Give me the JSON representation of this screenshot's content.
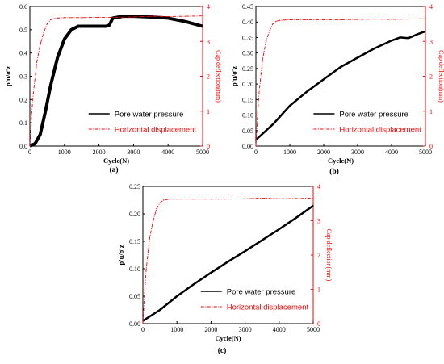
{
  "chart_data": [
    {
      "type": "line",
      "panel_label": "(a)",
      "xlabel": "Cycle(N)",
      "ylabel": "p'u/σ'z",
      "y2label": "Cap deflection(mm)",
      "xlim": [
        0,
        5000
      ],
      "ylim": [
        0,
        0.6
      ],
      "y2lim": [
        0,
        4
      ],
      "xticks": [
        "0",
        "1000",
        "2000",
        "3000",
        "4000",
        "5000"
      ],
      "yticks": [
        "0.0",
        "0.1",
        "0.2",
        "0.3",
        "0.4",
        "0.5",
        "0.6"
      ],
      "y2ticks": [
        "0",
        "1",
        "2",
        "3",
        "4"
      ],
      "legend": [
        "Pore water pressure",
        "Horizontal displacement"
      ],
      "series": [
        {
          "name": "Pore water pressure",
          "axis": "left",
          "color": "#000000",
          "x": [
            0,
            150,
            300,
            450,
            600,
            800,
            1000,
            1200,
            1400,
            1600,
            1800,
            2000,
            2200,
            2300,
            2400,
            2700,
            3000,
            3500,
            4000,
            4500,
            5000
          ],
          "y": [
            0,
            0.01,
            0.05,
            0.15,
            0.26,
            0.38,
            0.46,
            0.5,
            0.515,
            0.515,
            0.515,
            0.515,
            0.515,
            0.52,
            0.55,
            0.558,
            0.558,
            0.555,
            0.55,
            0.535,
            0.515
          ]
        },
        {
          "name": "Horizontal displacement",
          "axis": "right",
          "color": "#ff0000",
          "x": [
            0,
            50,
            100,
            200,
            300,
            400,
            500,
            600,
            700,
            800,
            1000,
            1500,
            2000,
            2500,
            3000,
            3500,
            4000,
            4500,
            5000
          ],
          "y": [
            0,
            0.9,
            1.5,
            2.4,
            2.9,
            3.25,
            3.5,
            3.62,
            3.65,
            3.67,
            3.68,
            3.68,
            3.69,
            3.69,
            3.7,
            3.72,
            3.71,
            3.72,
            3.73
          ]
        }
      ]
    },
    {
      "type": "line",
      "panel_label": "(b)",
      "xlabel": "Cycle(N)",
      "ylabel": "p'u/σ'z",
      "y2label": "Cap deflection(mm)",
      "xlim": [
        0,
        5000
      ],
      "ylim": [
        0,
        0.45
      ],
      "y2lim": [
        0,
        4
      ],
      "xticks": [
        "0",
        "1000",
        "2000",
        "3000",
        "4000",
        "5000"
      ],
      "yticks": [
        "0.00",
        "0.05",
        "0.10",
        "0.15",
        "0.20",
        "0.25",
        "0.30",
        "0.35",
        "0.40",
        "0.45"
      ],
      "y2ticks": [
        "0",
        "1",
        "2",
        "3",
        "4"
      ],
      "legend": [
        "Pore water pressure",
        "Horizontal displacement"
      ],
      "series": [
        {
          "name": "Pore water pressure",
          "axis": "left",
          "color": "#000000",
          "x": [
            0,
            250,
            500,
            750,
            1000,
            1500,
            2000,
            2500,
            3000,
            3500,
            4000,
            4250,
            4500,
            4750,
            5000
          ],
          "y": [
            0.02,
            0.045,
            0.07,
            0.1,
            0.13,
            0.175,
            0.215,
            0.255,
            0.285,
            0.315,
            0.34,
            0.35,
            0.348,
            0.36,
            0.37
          ]
        },
        {
          "name": "Horizontal displacement",
          "axis": "right",
          "color": "#ff0000",
          "x": [
            0,
            50,
            100,
            200,
            300,
            400,
            500,
            600,
            700,
            800,
            1000,
            1500,
            2000,
            2500,
            3000,
            3500,
            4000,
            4500,
            5000
          ],
          "y": [
            0,
            0.9,
            1.6,
            2.5,
            3.0,
            3.3,
            3.5,
            3.58,
            3.6,
            3.61,
            3.62,
            3.62,
            3.62,
            3.62,
            3.63,
            3.64,
            3.63,
            3.64,
            3.65
          ]
        }
      ]
    },
    {
      "type": "line",
      "panel_label": "(c)",
      "xlabel": "Cycle(N)",
      "ylabel": "p'u/σ'z",
      "y2label": "Cap deflection(mm)",
      "xlim": [
        0,
        5000
      ],
      "ylim": [
        0,
        0.25
      ],
      "y2lim": [
        0,
        4
      ],
      "xticks": [
        "0",
        "1000",
        "2000",
        "3000",
        "4000",
        "5000"
      ],
      "yticks": [
        "0.00",
        "0.05",
        "0.10",
        "0.15",
        "0.20",
        "0.25"
      ],
      "y2ticks": [
        "0",
        "1",
        "2",
        "3",
        "4"
      ],
      "legend": [
        "Pore water pressure",
        "Horizontal displacement"
      ],
      "series": [
        {
          "name": "Pore water pressure",
          "axis": "left",
          "color": "#000000",
          "x": [
            0,
            500,
            1000,
            1500,
            2000,
            2500,
            3000,
            3500,
            4000,
            4500,
            5000
          ],
          "y": [
            0.005,
            0.025,
            0.05,
            0.072,
            0.093,
            0.113,
            0.132,
            0.152,
            0.172,
            0.193,
            0.215
          ]
        },
        {
          "name": "Horizontal displacement",
          "axis": "right",
          "color": "#ff0000",
          "x": [
            0,
            50,
            100,
            200,
            300,
            400,
            500,
            600,
            700,
            800,
            1000,
            1500,
            2000,
            2500,
            3000,
            3500,
            4000,
            4500,
            5000
          ],
          "y": [
            0,
            0.9,
            1.6,
            2.5,
            3.0,
            3.35,
            3.52,
            3.6,
            3.62,
            3.63,
            3.63,
            3.63,
            3.63,
            3.63,
            3.64,
            3.66,
            3.64,
            3.65,
            3.66
          ]
        }
      ]
    }
  ]
}
